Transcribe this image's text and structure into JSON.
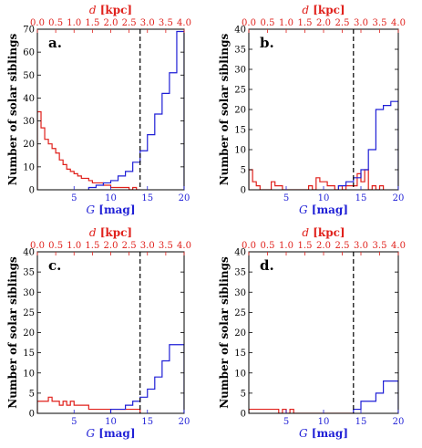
{
  "colors": {
    "mag": "#1f1fd6",
    "dist": "#e0201b",
    "cut": "#000000"
  },
  "axis_text": {
    "ylabel": "Number of solar siblings",
    "xlabel_bottom": "G [mag]",
    "xlabel_top": "d [kpc]",
    "ticks_bottom": [
      "5",
      "10",
      "15",
      "20"
    ],
    "ticks_top": [
      "0.0",
      "0.5",
      "1.0",
      "1.5",
      "2.0",
      "2.5",
      "3.0",
      "3.5",
      "4.0"
    ]
  },
  "chart_data": [
    {
      "type": "histogram",
      "panel_label": "a.",
      "xlim": [
        0,
        20
      ],
      "top_xlim": [
        0,
        4.0
      ],
      "ylim": [
        0,
        70
      ],
      "yticks": [
        "0",
        "10",
        "20",
        "30",
        "40",
        "50",
        "60",
        "70"
      ],
      "vline_G": 14.0,
      "mag_hist": {
        "bin_edges": [
          7,
          8,
          9,
          10,
          11,
          12,
          13,
          14,
          15,
          16,
          17,
          18,
          19,
          20
        ],
        "counts": [
          1,
          2,
          3,
          4,
          6,
          8,
          12,
          17,
          24,
          33,
          42,
          51,
          69
        ]
      },
      "dist_hist": {
        "bin_edges": [
          0.0,
          0.1,
          0.2,
          0.3,
          0.4,
          0.5,
          0.6,
          0.7,
          0.8,
          0.9,
          1.0,
          1.1,
          1.2,
          1.3,
          1.4,
          1.5,
          1.6,
          1.7,
          1.8,
          1.9,
          2.0,
          2.1,
          2.2,
          2.3,
          2.4,
          2.5,
          2.6,
          2.7,
          2.8
        ],
        "counts": [
          34,
          27,
          22,
          20,
          18,
          16,
          13,
          11,
          9,
          8,
          7,
          6,
          5,
          5,
          4,
          3,
          3,
          3,
          2,
          2,
          1,
          1,
          1,
          1,
          1,
          0,
          1,
          0
        ]
      }
    },
    {
      "type": "histogram",
      "panel_label": "b.",
      "xlim": [
        0,
        20
      ],
      "top_xlim": [
        0,
        4.0
      ],
      "ylim": [
        0,
        40
      ],
      "yticks": [
        "0",
        "5",
        "10",
        "15",
        "20",
        "25",
        "30",
        "35",
        "40"
      ],
      "vline_G": 14.0,
      "mag_hist": {
        "bin_edges": [
          12,
          13,
          14,
          15,
          16,
          17,
          18,
          19,
          20
        ],
        "counts": [
          1,
          2,
          3,
          5,
          10,
          20,
          21,
          22
        ]
      },
      "dist_hist": {
        "bin_edges": [
          0.0,
          0.1,
          0.2,
          0.3,
          0.4,
          0.5,
          0.6,
          0.7,
          0.8,
          0.9,
          1.0,
          1.1,
          1.2,
          1.3,
          1.4,
          1.5,
          1.6,
          1.7,
          1.8,
          1.9,
          2.0,
          2.1,
          2.2,
          2.3,
          2.4,
          2.5,
          2.6,
          2.7,
          2.8,
          2.9,
          3.0,
          3.1,
          3.2,
          3.3,
          3.4,
          3.5,
          3.6
        ],
        "counts": [
          5,
          2,
          1,
          0,
          0,
          0,
          2,
          1,
          1,
          0,
          0,
          0,
          0,
          0,
          0,
          0,
          1,
          0,
          3,
          2,
          2,
          1,
          1,
          0,
          1,
          0,
          1,
          1,
          1,
          4,
          2,
          5,
          0,
          1,
          0,
          1
        ]
      }
    },
    {
      "type": "histogram",
      "panel_label": "c.",
      "xlim": [
        0,
        20
      ],
      "top_xlim": [
        0,
        4.0
      ],
      "ylim": [
        0,
        40
      ],
      "yticks": [
        "0",
        "5",
        "10",
        "15",
        "20",
        "25",
        "30",
        "35",
        "40"
      ],
      "vline_G": 14.0,
      "mag_hist": {
        "bin_edges": [
          10,
          11,
          12,
          13,
          14,
          15,
          16,
          17,
          18,
          19,
          20
        ],
        "counts": [
          1,
          1,
          2,
          3,
          4,
          6,
          9,
          13,
          17,
          17
        ]
      },
      "dist_hist": {
        "bin_edges": [
          0.0,
          0.1,
          0.2,
          0.3,
          0.4,
          0.5,
          0.6,
          0.7,
          0.8,
          0.9,
          1.0,
          1.1,
          1.2,
          1.3,
          1.4,
          1.5,
          1.6,
          1.7,
          1.8,
          1.9,
          2.0,
          2.1,
          2.2,
          2.3,
          2.4,
          2.5,
          2.6,
          2.7,
          2.8
        ],
        "counts": [
          3,
          3,
          3,
          4,
          3,
          3,
          2,
          3,
          2,
          3,
          2,
          2,
          2,
          2,
          1,
          1,
          1,
          1,
          1,
          1,
          1,
          1,
          1,
          1,
          1,
          1,
          1,
          1
        ]
      }
    },
    {
      "type": "histogram",
      "panel_label": "d.",
      "xlim": [
        0,
        20
      ],
      "top_xlim": [
        0,
        4.0
      ],
      "ylim": [
        0,
        40
      ],
      "yticks": [
        "0",
        "5",
        "10",
        "15",
        "20",
        "25",
        "30",
        "35",
        "40"
      ],
      "vline_G": 14.0,
      "mag_hist": {
        "bin_edges": [
          14,
          15,
          16,
          17,
          18,
          19,
          20
        ],
        "counts": [
          1,
          3,
          3,
          5,
          8,
          8
        ]
      },
      "dist_hist": {
        "bin_edges": [
          0.0,
          0.2,
          0.4,
          0.6,
          0.8,
          0.9,
          1.0,
          1.1,
          1.2,
          1.3,
          1.4,
          1.6,
          1.8,
          2.0,
          2.2,
          2.4,
          2.6,
          2.8
        ],
        "counts": [
          1,
          1,
          1,
          1,
          0,
          1,
          0,
          1,
          0,
          0,
          0,
          0,
          0,
          0,
          0,
          0,
          0
        ]
      }
    }
  ]
}
